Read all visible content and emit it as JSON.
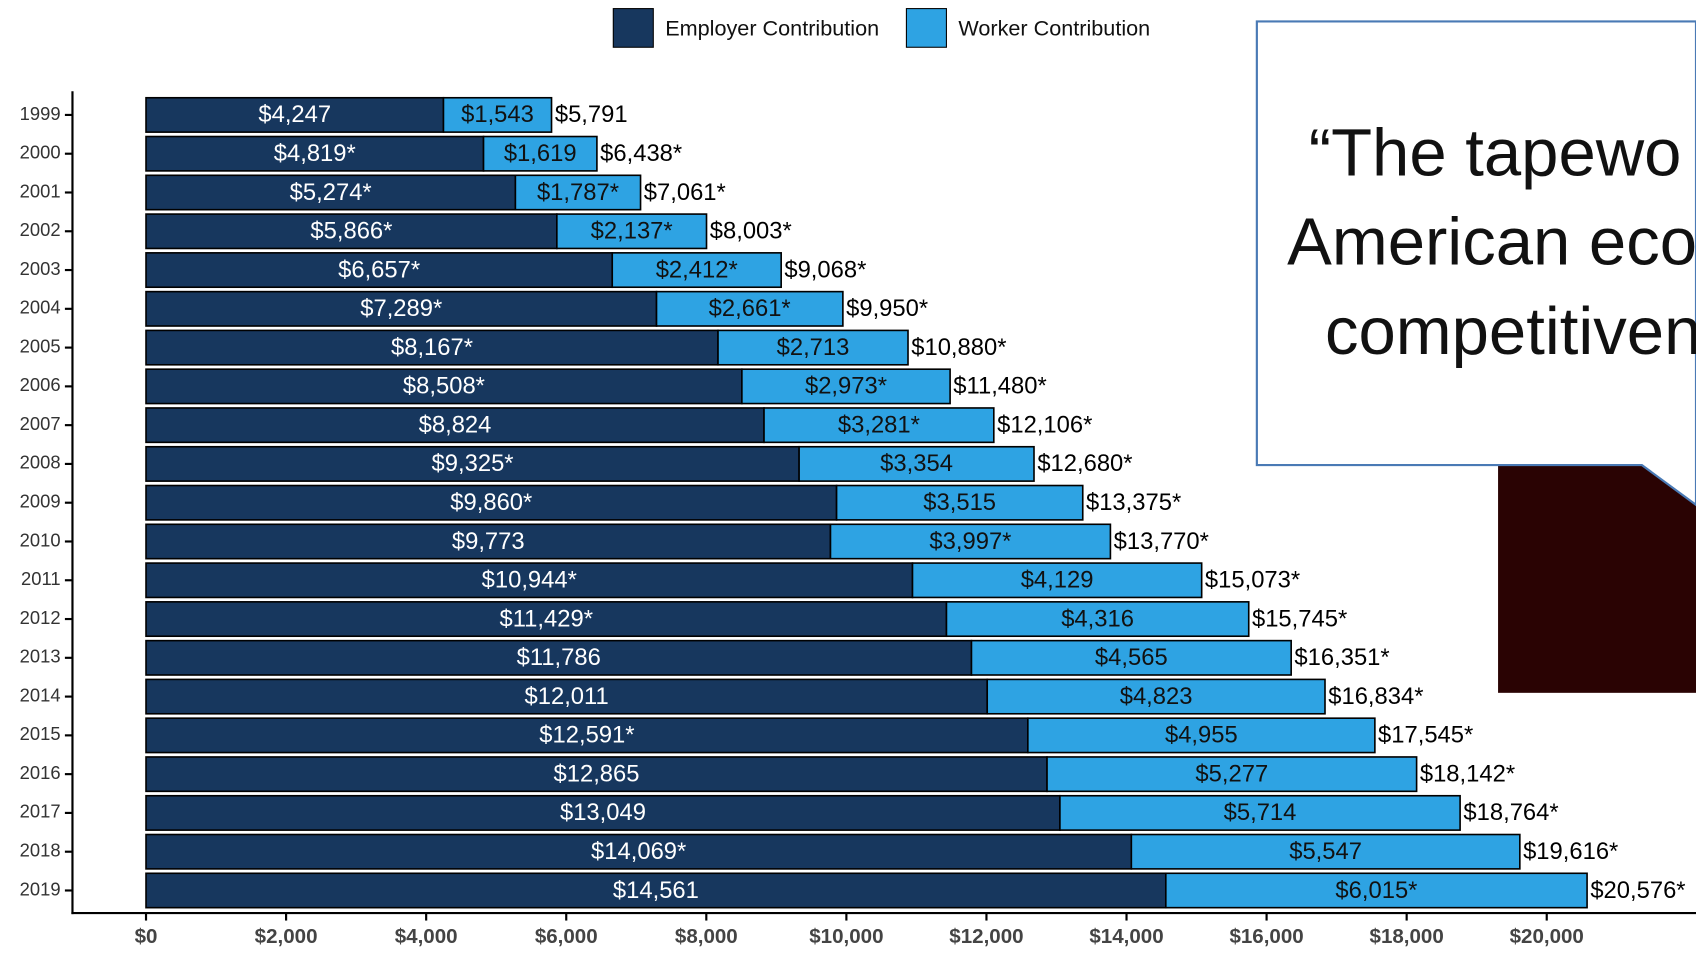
{
  "chart_data": {
    "type": "stacked-barh",
    "categories": [
      "1999",
      "2000",
      "2001",
      "2002",
      "2003",
      "2004",
      "2005",
      "2006",
      "2007",
      "2008",
      "2009",
      "2010",
      "2011",
      "2012",
      "2013",
      "2014",
      "2015",
      "2016",
      "2017",
      "2018",
      "2019"
    ],
    "series": [
      {
        "name": "Employer Contribution",
        "color": "#17375e",
        "values": [
          4247,
          4819,
          5274,
          5866,
          6657,
          7289,
          8167,
          8508,
          8824,
          9325,
          9860,
          9773,
          10944,
          11429,
          11786,
          12011,
          12591,
          12865,
          13049,
          14069,
          14561
        ],
        "value_labels": [
          "$4,247",
          "$4,819*",
          "$5,274*",
          "$5,866*",
          "$6,657*",
          "$7,289*",
          "$8,167*",
          "$8,508*",
          "$8,824",
          "$9,325*",
          "$9,860*",
          "$9,773",
          "$10,944*",
          "$11,429*",
          "$11,786",
          "$12,011",
          "$12,591*",
          "$12,865",
          "$13,049",
          "$14,069*",
          "$14,561"
        ]
      },
      {
        "name": "Worker Contribution",
        "color": "#2ea3e3",
        "values": [
          1543,
          1619,
          1787,
          2137,
          2412,
          2661,
          2713,
          2973,
          3281,
          3354,
          3515,
          3997,
          4129,
          4316,
          4565,
          4823,
          4955,
          5277,
          5714,
          5547,
          6015
        ],
        "value_labels": [
          "$1,543",
          "$1,619",
          "$1,787*",
          "$2,137*",
          "$2,412*",
          "$2,661*",
          "$2,713",
          "$2,973*",
          "$3,281*",
          "$3,354",
          "$3,515",
          "$3,997*",
          "$4,129",
          "$4,316",
          "$4,565",
          "$4,823",
          "$4,955",
          "$5,277",
          "$5,714",
          "$5,547",
          "$6,015*"
        ]
      }
    ],
    "totals": {
      "values": [
        5791,
        6438,
        7061,
        8003,
        9068,
        9950,
        10880,
        11480,
        12106,
        12680,
        13375,
        13770,
        15073,
        15745,
        16351,
        16834,
        17545,
        18142,
        18764,
        19616,
        20576
      ],
      "value_labels": [
        "$5,791",
        "$6,438*",
        "$7,061*",
        "$8,003*",
        "$9,068*",
        "$9,950*",
        "$10,880*",
        "$11,480*",
        "$12,106*",
        "$12,680*",
        "$13,375*",
        "$13,770*",
        "$15,073*",
        "$15,745*",
        "$16,351*",
        "$16,834*",
        "$17,545*",
        "$18,142*",
        "$18,764*",
        "$19,616*",
        "$20,576*"
      ]
    },
    "xlim": [
      0,
      22000
    ],
    "xticks": [
      {
        "value": 0,
        "label": "$0"
      },
      {
        "value": 2000,
        "label": "$2,000"
      },
      {
        "value": 4000,
        "label": "$4,000"
      },
      {
        "value": 6000,
        "label": "$6,000"
      },
      {
        "value": 8000,
        "label": "$8,000"
      },
      {
        "value": 10000,
        "label": "$10,000"
      },
      {
        "value": 12000,
        "label": "$12,000"
      },
      {
        "value": 14000,
        "label": "$14,000"
      },
      {
        "value": 16000,
        "label": "$16,000"
      },
      {
        "value": 18000,
        "label": "$18,000"
      },
      {
        "value": 20000,
        "label": "$20,000"
      }
    ],
    "legend": "top"
  },
  "callout": {
    "lines": [
      "“The tapewo",
      "American eco",
      "competitiven"
    ]
  }
}
